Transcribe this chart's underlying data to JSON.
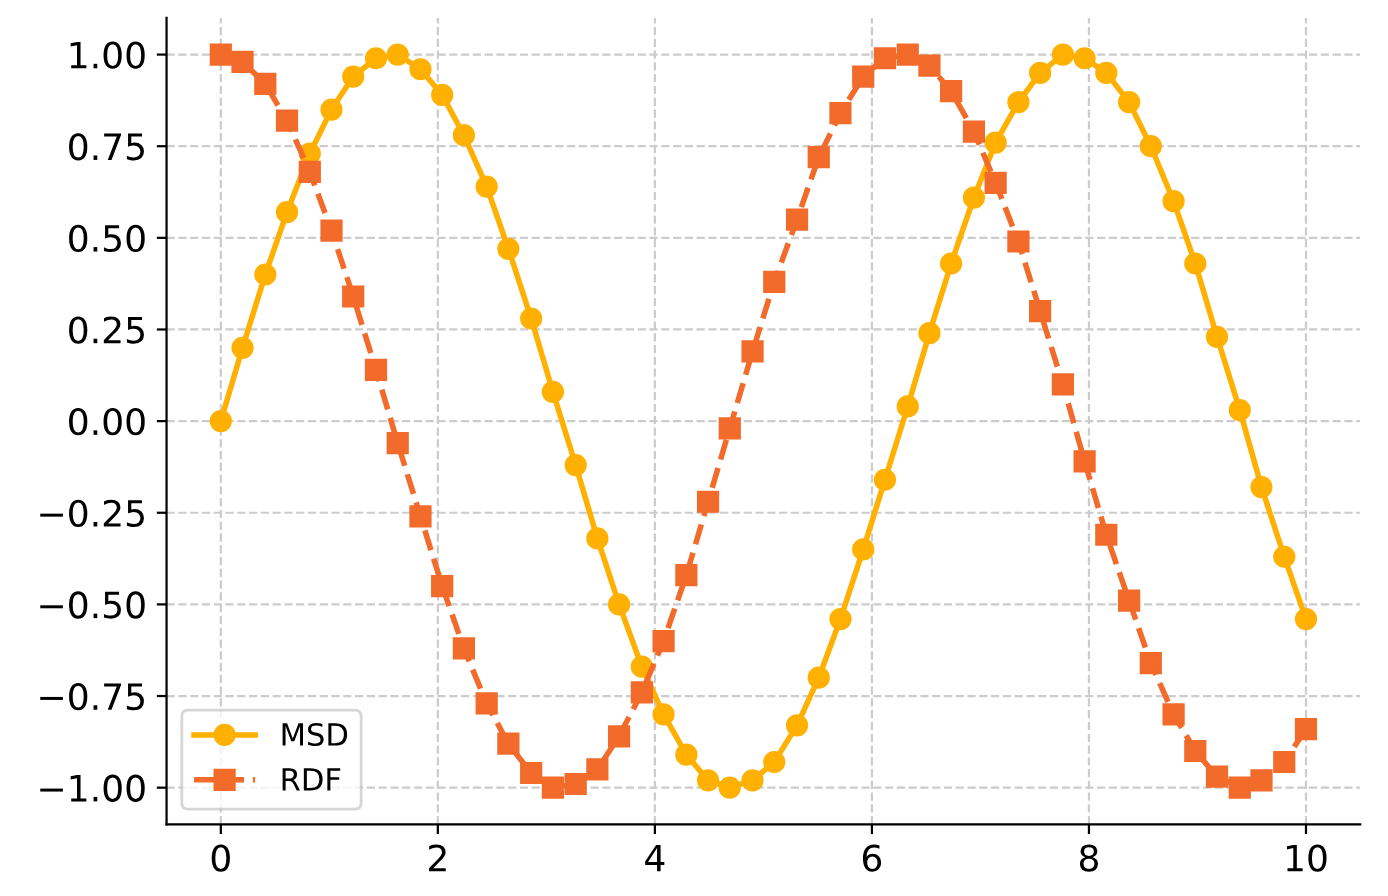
{
  "chart_data": {
    "type": "line",
    "x": [
      0,
      0.2,
      0.41,
      0.61,
      0.82,
      1.02,
      1.22,
      1.43,
      1.63,
      1.84,
      2.04,
      2.24,
      2.45,
      2.65,
      2.86,
      3.06,
      3.27,
      3.47,
      3.67,
      3.88,
      4.08,
      4.29,
      4.49,
      4.69,
      4.9,
      5.1,
      5.31,
      5.51,
      5.71,
      5.92,
      6.12,
      6.33,
      6.53,
      6.73,
      6.94,
      7.14,
      7.35,
      7.55,
      7.76,
      7.96,
      8.16,
      8.37,
      8.57,
      8.78,
      8.98,
      9.18,
      9.39,
      9.59,
      9.8,
      10
    ],
    "series": [
      {
        "name": "MSD",
        "color": "#ffb000",
        "marker": "circle",
        "line_style": "solid",
        "values": [
          0,
          0.2,
          0.4,
          0.57,
          0.73,
          0.85,
          0.94,
          0.99,
          1.0,
          0.96,
          0.89,
          0.78,
          0.64,
          0.47,
          0.28,
          0.08,
          -0.12,
          -0.32,
          -0.5,
          -0.67,
          -0.8,
          -0.91,
          -0.98,
          -1.0,
          -0.98,
          -0.93,
          -0.83,
          -0.7,
          -0.54,
          -0.35,
          -0.16,
          0.04,
          0.24,
          0.43,
          0.61,
          0.76,
          0.87,
          0.95,
          1.0,
          0.99,
          0.95,
          0.87,
          0.75,
          0.6,
          0.43,
          0.23,
          0.03,
          -0.18,
          -0.37,
          -0.54
        ]
      },
      {
        "name": "RDF",
        "color": "#f26b2a",
        "marker": "square",
        "line_style": "dashed",
        "values": [
          1.0,
          0.98,
          0.92,
          0.82,
          0.68,
          0.52,
          0.34,
          0.14,
          -0.06,
          -0.26,
          -0.45,
          -0.62,
          -0.77,
          -0.88,
          -0.96,
          -1.0,
          -0.99,
          -0.95,
          -0.86,
          -0.74,
          -0.6,
          -0.42,
          -0.22,
          -0.02,
          0.19,
          0.38,
          0.55,
          0.72,
          0.84,
          0.94,
          0.99,
          1.0,
          0.97,
          0.9,
          0.79,
          0.65,
          0.49,
          0.3,
          0.1,
          -0.11,
          -0.31,
          -0.49,
          -0.66,
          -0.8,
          -0.9,
          -0.97,
          -1.0,
          -0.98,
          -0.93,
          -0.84
        ]
      }
    ],
    "xlim": [
      -0.5,
      10.5
    ],
    "ylim": [
      -1.1,
      1.1
    ],
    "xticks": [
      0,
      2,
      4,
      6,
      8,
      10
    ],
    "yticks": [
      {
        "value": -1,
        "label": "−1.00"
      },
      {
        "value": -0.75,
        "label": "−0.75"
      },
      {
        "value": -0.5,
        "label": "−0.50"
      },
      {
        "value": -0.25,
        "label": "−0.25"
      },
      {
        "value": 0,
        "label": "0.00"
      },
      {
        "value": 0.25,
        "label": "0.25"
      },
      {
        "value": 0.5,
        "label": "0.50"
      },
      {
        "value": 0.75,
        "label": "0.75"
      },
      {
        "value": 1,
        "label": "1.00"
      }
    ],
    "grid": true,
    "legend": "bottom left"
  }
}
